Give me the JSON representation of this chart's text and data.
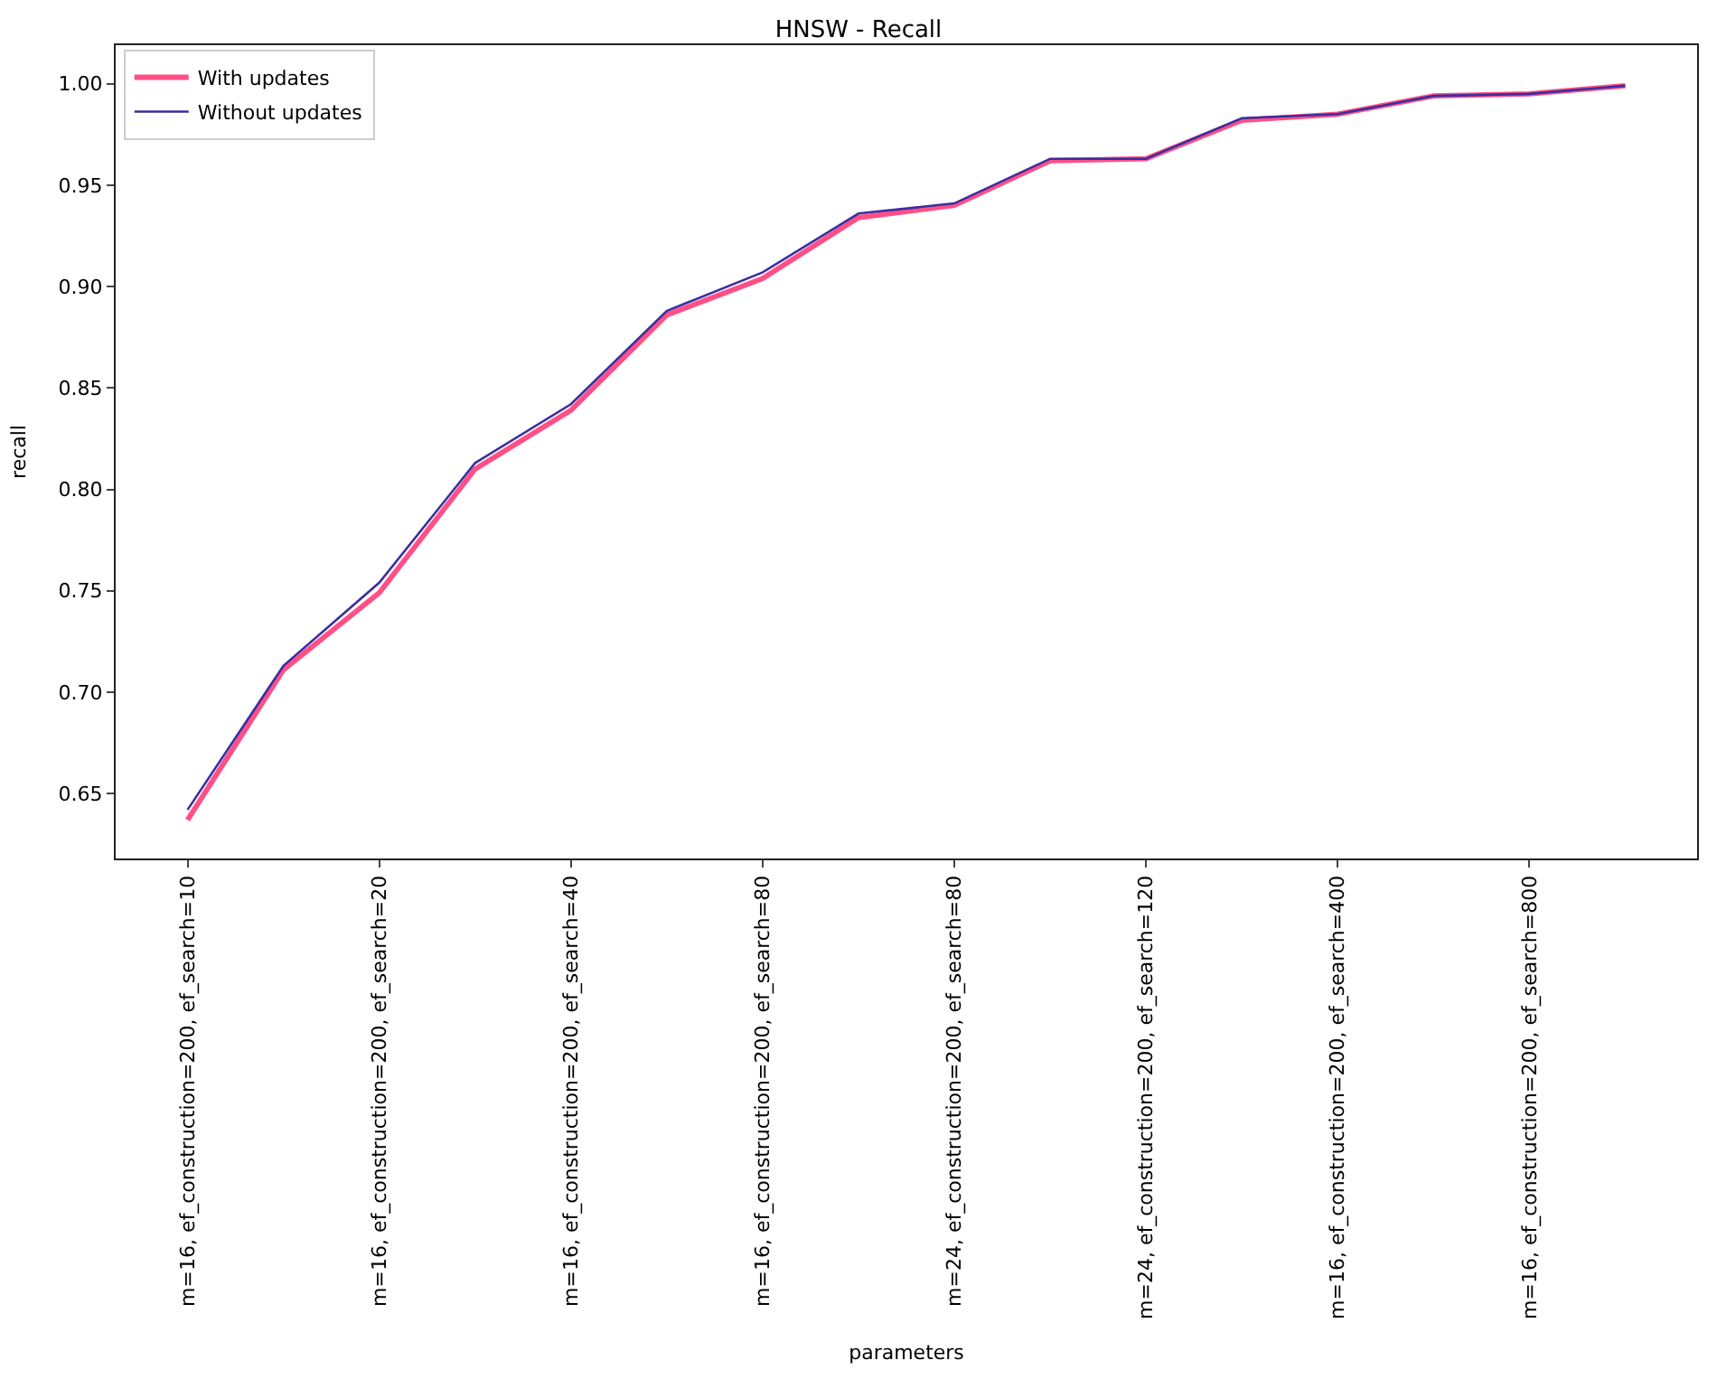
{
  "chart_data": {
    "type": "line",
    "title": "HNSW - Recall",
    "xlabel": "parameters",
    "ylabel": "recall",
    "categories": [
      "m=16, ef_construction=200, ef_search=10",
      null,
      "m=16, ef_construction=200, ef_search=20",
      null,
      "m=16, ef_construction=200, ef_search=40",
      null,
      "m=16, ef_construction=200, ef_search=80",
      null,
      "m=24, ef_construction=200, ef_search=80",
      null,
      "m=24, ef_construction=200, ef_search=120",
      null,
      "m=16, ef_construction=200, ef_search=400",
      null,
      "m=16, ef_construction=200, ef_search=800",
      null
    ],
    "series": [
      {
        "name": "With updates",
        "color": "#ff4f86",
        "values": [
          0.637,
          0.711,
          0.749,
          0.81,
          0.839,
          0.886,
          0.904,
          0.934,
          0.94,
          0.962,
          0.963,
          0.982,
          0.985,
          0.994,
          0.995,
          0.999
        ]
      },
      {
        "name": "Without updates",
        "color": "#3a2ea0",
        "values": [
          0.642,
          0.713,
          0.754,
          0.813,
          0.842,
          0.888,
          0.907,
          0.936,
          0.941,
          0.963,
          0.963,
          0.983,
          0.985,
          0.994,
          0.995,
          0.999
        ]
      }
    ],
    "ylim": [
      0.618,
      1.019
    ],
    "yticks": [
      0.65,
      {
        "value": 0.7,
        "label": "0.70"
      },
      0.75,
      {
        "value": 0.8,
        "label": "0.80"
      },
      0.85,
      {
        "value": 0.9,
        "label": "0.90"
      },
      0.95,
      {
        "value": 1.0,
        "label": "1.00"
      }
    ],
    "legend": "top left",
    "line_style": "solid",
    "marker": "none"
  }
}
